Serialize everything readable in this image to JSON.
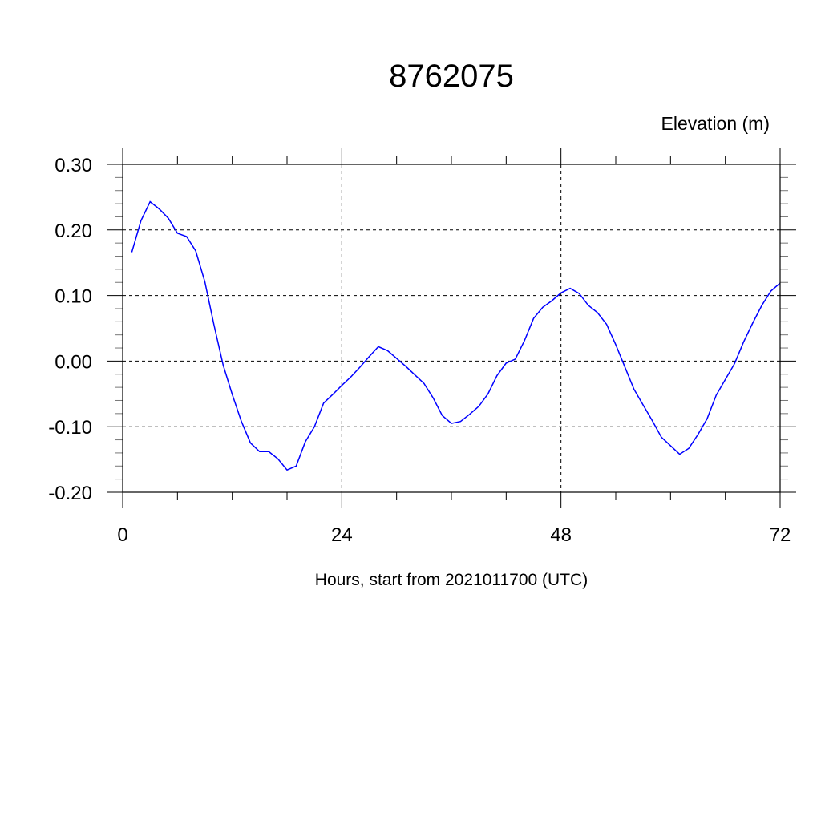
{
  "chart_data": {
    "type": "line",
    "title": "8762075",
    "ylabel": "Elevation (m)",
    "xlabel": "Hours, start from 2021011700 (UTC)",
    "xlim": [
      0,
      72
    ],
    "ylim": [
      -0.2,
      0.3
    ],
    "x_ticks": [
      0,
      24,
      48,
      72
    ],
    "x_tick_labels": [
      "0",
      "24",
      "48",
      "72"
    ],
    "y_ticks": [
      -0.2,
      -0.1,
      0.0,
      0.1,
      0.2,
      0.3
    ],
    "y_tick_labels": [
      "-0.20",
      "-0.10",
      "0.00",
      "0.10",
      "0.20",
      "0.30"
    ],
    "grid": true,
    "line_color": "#0000ff",
    "series": [
      {
        "x": [
          1,
          2,
          3,
          4,
          5,
          6,
          7,
          8,
          9,
          10,
          11,
          12,
          13,
          14,
          15,
          16,
          17,
          18,
          19,
          20,
          21,
          22,
          23,
          24,
          25,
          26,
          27,
          28,
          29,
          30,
          31,
          32,
          33,
          34,
          35,
          36,
          37,
          38,
          39,
          40,
          41,
          42,
          43,
          44,
          45,
          46,
          47,
          48,
          49,
          50,
          51,
          52,
          53,
          54,
          55,
          56,
          57,
          58,
          59,
          60,
          61,
          62,
          63,
          64,
          65,
          66,
          67,
          68,
          69,
          70,
          71,
          72
        ],
        "values": [
          0.166,
          0.214,
          0.243,
          0.232,
          0.218,
          0.195,
          0.19,
          0.168,
          0.121,
          0.055,
          -0.006,
          -0.051,
          -0.092,
          -0.125,
          -0.138,
          -0.138,
          -0.149,
          -0.166,
          -0.16,
          -0.123,
          -0.1,
          -0.064,
          -0.051,
          -0.037,
          -0.024,
          -0.009,
          0.007,
          0.022,
          0.016,
          0.004,
          -0.008,
          -0.021,
          -0.034,
          -0.056,
          -0.083,
          -0.095,
          -0.092,
          -0.081,
          -0.069,
          -0.05,
          -0.022,
          -0.003,
          0.003,
          0.031,
          0.065,
          0.082,
          0.092,
          0.104,
          0.111,
          0.103,
          0.085,
          0.074,
          0.056,
          0.025,
          -0.009,
          -0.043,
          -0.067,
          -0.091,
          -0.116,
          -0.129,
          -0.142,
          -0.133,
          -0.112,
          -0.088,
          -0.052,
          -0.028,
          -0.004,
          0.029,
          0.058,
          0.085,
          0.107,
          0.119
        ]
      }
    ]
  }
}
